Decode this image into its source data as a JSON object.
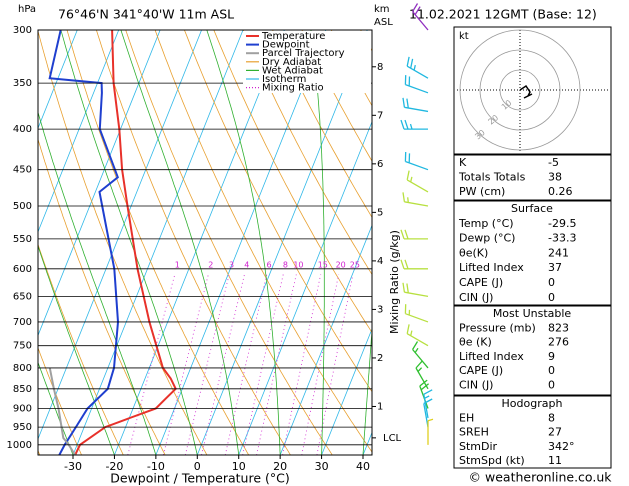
{
  "chart_data": {
    "type": "skewt",
    "title": "76°46'N  341°40'W  11m  ASL",
    "subtitle": "11.02.2021 12GMT (Base: 12)",
    "y_label": "hPa",
    "y2_label_top": "km",
    "y2_label_bottom": "ASL",
    "x_label": "Dewpoint / Temperature (°C)",
    "mixing_ratio_label": "Mixing Ratio (g/kg)",
    "ylog": true,
    "ylim": [
      1030,
      300
    ],
    "yticks": [
      300,
      350,
      400,
      450,
      500,
      550,
      600,
      650,
      700,
      750,
      800,
      850,
      900,
      950,
      1000
    ],
    "xlim": [
      -38.45,
      42.17
    ],
    "xticks": [
      -30,
      -20,
      -10,
      0,
      10,
      20,
      30,
      40
    ],
    "y2ticks": [
      1,
      2,
      3,
      4,
      5,
      6,
      7,
      8
    ],
    "lcl": {
      "label": "LCL",
      "pressure": 980
    },
    "series": [
      {
        "name": "Temperature",
        "color": "#e8312a",
        "pressures": [
          1030,
          1000,
          950,
          925,
          900,
          875,
          850,
          825,
          800,
          700,
          600,
          500,
          450,
          400,
          350,
          300
        ],
        "values": [
          -29.5,
          -29.3,
          -24.9,
          -19.9,
          -14.5,
          -13.1,
          -11.6,
          -13.8,
          -16.7,
          -24.4,
          -32.4,
          -40.9,
          -45.7,
          -50.3,
          -56.1,
          -61.6
        ]
      },
      {
        "name": "Dewpoint",
        "color": "#1f3fcf",
        "pressures": [
          1030,
          1000,
          950,
          900,
          850,
          800,
          700,
          600,
          500,
          480,
          460,
          400,
          360,
          350,
          345,
          300
        ],
        "values": [
          -33.3,
          -33,
          -32,
          -31,
          -28,
          -28.5,
          -32,
          -38,
          -47,
          -49,
          -46,
          -55,
          -58,
          -59,
          -72,
          -74
        ]
      },
      {
        "name": "Parcel Trajectory",
        "color": "#a0a0a0",
        "pressures": [
          1030,
          1000,
          980,
          900,
          850,
          800
        ],
        "values": [
          -29.5,
          -32,
          -34,
          -38,
          -41,
          -44
        ]
      }
    ],
    "reference_lines": [
      {
        "name": "Dry Adiabat",
        "color": "#e8a030"
      },
      {
        "name": "Wet Adiabat",
        "color": "#30b030"
      },
      {
        "name": "Isotherm",
        "color": "#30b8e8"
      },
      {
        "name": "Mixing Ratio",
        "color": "#d020d0"
      }
    ],
    "mixing_ratios": [
      1,
      2,
      3,
      4,
      6,
      8,
      10,
      15,
      20,
      25
    ],
    "winds": {
      "pressures": [
        300,
        345,
        360,
        380,
        400,
        450,
        480,
        500,
        550,
        600,
        650,
        700,
        750,
        800,
        850,
        900,
        925,
        950,
        1000
      ],
      "directions": [
        320,
        300,
        290,
        280,
        270,
        290,
        300,
        280,
        270,
        270,
        280,
        290,
        300,
        320,
        330,
        340,
        350,
        350,
        360
      ],
      "speeds": [
        20,
        25,
        20,
        20,
        25,
        20,
        15,
        15,
        20,
        20,
        20,
        15,
        15,
        15,
        15,
        20,
        15,
        10,
        5
      ],
      "colors": [
        "#9030c0",
        "#20b8e0",
        "#20b8e0",
        "#20b8e0",
        "#20b8e0",
        "#20b8e0",
        "#b8e040",
        "#b8e040",
        "#b8e040",
        "#b8e040",
        "#b8e040",
        "#b8e040",
        "#b8e040",
        "#30c030",
        "#30c030",
        "#30c030",
        "#20b8e0",
        "#20b8e0",
        "#e0d020"
      ]
    },
    "hodograph": {
      "label": "kt",
      "rings": [
        10,
        20,
        30
      ],
      "u": [
        0,
        3,
        5,
        4,
        6,
        2
      ],
      "v": [
        0,
        2,
        -1,
        -3,
        -2,
        -4
      ]
    },
    "copyright": "© weatheronline.co.uk"
  },
  "stability": {
    "rows": [
      [
        "K",
        -5
      ],
      [
        "Totals Totals",
        38
      ],
      [
        "PW (cm)",
        0.26
      ]
    ]
  },
  "surface": {
    "title": "Surface",
    "rows": [
      [
        "Temp (°C)",
        -29.5
      ],
      [
        "Dewp (°C)",
        -33.3
      ],
      [
        "θe(K)",
        241
      ],
      [
        "Lifted Index",
        37
      ],
      [
        "CAPE (J)",
        0
      ],
      [
        "CIN (J)",
        0
      ]
    ]
  },
  "most_unstable": {
    "title": "Most Unstable",
    "rows": [
      [
        "Pressure (mb)",
        823
      ],
      [
        "θe (K)",
        276
      ],
      [
        "Lifted Index",
        9
      ],
      [
        "CAPE (J)",
        0
      ],
      [
        "CIN (J)",
        0
      ]
    ]
  },
  "hodograph_table": {
    "title": "Hodograph",
    "rows": [
      [
        "EH",
        8
      ],
      [
        "SREH",
        27
      ],
      [
        "StmDir",
        "342°"
      ],
      [
        "StmSpd (kt)",
        11
      ]
    ]
  }
}
